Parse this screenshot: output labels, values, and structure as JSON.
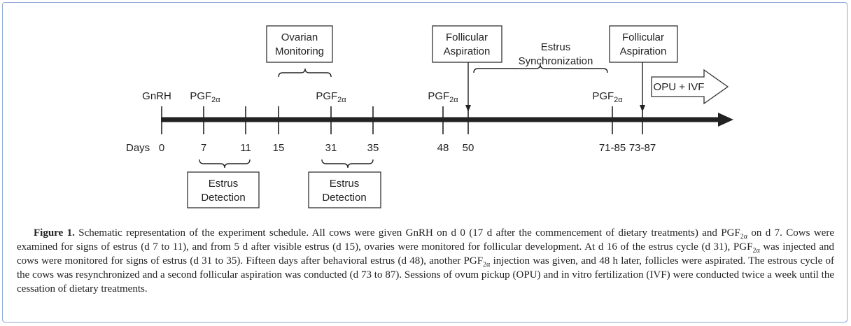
{
  "timeline": {
    "axis_label": "Days",
    "days": [
      "0",
      "7",
      "11",
      "15",
      "31",
      "35",
      "48",
      "50",
      "71-85",
      "73-87"
    ],
    "top_labels": [
      {
        "text": "GnRH"
      },
      {
        "text": "PGF",
        "sub": "2α"
      },
      {
        "text": "PGF",
        "sub": "2α"
      },
      {
        "text": "PGF",
        "sub": "2α"
      },
      {
        "text": "PGF",
        "sub": "2α"
      }
    ]
  },
  "boxes": [
    {
      "lines": [
        "Ovarian",
        "Monitoring"
      ]
    },
    {
      "lines": [
        "Follicular",
        "Aspiration"
      ]
    },
    {
      "lines": [
        "Follicular",
        "Aspiration"
      ]
    },
    {
      "lines": [
        "OPU + IVF"
      ]
    },
    {
      "lines": [
        "Estrus",
        "Detection"
      ]
    },
    {
      "lines": [
        "Estrus",
        "Detection"
      ]
    }
  ],
  "annotations": [
    {
      "lines": [
        "Estrus",
        "Synchronization"
      ]
    }
  ],
  "caption": {
    "label": "Figure 1.",
    "segments": [
      " Schematic representation of the experiment schedule. All cows were given GnRH on d 0 (17 d after the commencement of dietary treatments) and PGF",
      {
        "sub": "2α"
      },
      " on d 7. Cows were examined for signs of estrus (d 7 to 11), and from 5 d after visible estrus (d 15), ovaries were monitored for follicular development. At d 16 of the estrus cycle (d 31), PGF",
      {
        "sub": "2α"
      },
      " was injected and cows were monitored for signs of estrus (d 31 to 35). Fifteen days after behavioral estrus (d 48), another PGF",
      {
        "sub": "2α"
      },
      " injection was given, and 48 h later, follicles were aspirated. The estrous cycle of the cows was resynchronized and a second follicular aspiration was conducted (d 73 to 87). Sessions of ovum pickup (OPU) and in vitro fertilization (IVF) were conducted twice a week until the cessation of dietary treatments."
    ]
  }
}
